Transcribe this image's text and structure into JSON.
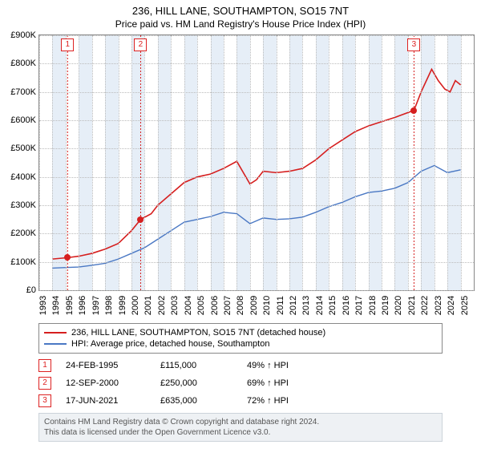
{
  "title": "236, HILL LANE, SOUTHAMPTON, SO15 7NT",
  "subtitle": "Price paid vs. HM Land Registry's House Price Index (HPI)",
  "chart": {
    "type": "line",
    "background_color": "#ffffff",
    "band_color": "#e6eef7",
    "grid_color": "#bbbbbb",
    "border_color": "#888888",
    "x": {
      "min": 1993,
      "max": 2026,
      "ticks": [
        1993,
        1994,
        1995,
        1996,
        1997,
        1998,
        1999,
        2000,
        2001,
        2002,
        2003,
        2004,
        2005,
        2006,
        2007,
        2008,
        2009,
        2010,
        2011,
        2012,
        2013,
        2014,
        2015,
        2016,
        2017,
        2018,
        2019,
        2020,
        2021,
        2022,
        2023,
        2024,
        2025
      ]
    },
    "y": {
      "min": 0,
      "max": 900000,
      "tick_step": 100000,
      "labels": [
        "£0",
        "£100K",
        "£200K",
        "£300K",
        "£400K",
        "£500K",
        "£600K",
        "£700K",
        "£800K",
        "£900K"
      ]
    },
    "series": [
      {
        "name": "236, HILL LANE, SOUTHAMPTON, SO15 7NT (detached house)",
        "color": "#d61f1f",
        "width": 1.6,
        "data": [
          [
            1994.0,
            110000
          ],
          [
            1995.15,
            115000
          ],
          [
            1996.0,
            120000
          ],
          [
            1997.0,
            130000
          ],
          [
            1998.0,
            145000
          ],
          [
            1999.0,
            165000
          ],
          [
            2000.0,
            210000
          ],
          [
            2000.7,
            250000
          ],
          [
            2001.5,
            270000
          ],
          [
            2002.0,
            300000
          ],
          [
            2003.0,
            340000
          ],
          [
            2004.0,
            380000
          ],
          [
            2005.0,
            400000
          ],
          [
            2006.0,
            410000
          ],
          [
            2007.0,
            430000
          ],
          [
            2008.0,
            455000
          ],
          [
            2009.0,
            375000
          ],
          [
            2009.5,
            390000
          ],
          [
            2010.0,
            420000
          ],
          [
            2011.0,
            415000
          ],
          [
            2012.0,
            420000
          ],
          [
            2013.0,
            430000
          ],
          [
            2014.0,
            460000
          ],
          [
            2015.0,
            500000
          ],
          [
            2016.0,
            530000
          ],
          [
            2017.0,
            560000
          ],
          [
            2018.0,
            580000
          ],
          [
            2019.0,
            595000
          ],
          [
            2020.0,
            610000
          ],
          [
            2021.46,
            635000
          ],
          [
            2022.0,
            700000
          ],
          [
            2022.8,
            780000
          ],
          [
            2023.3,
            740000
          ],
          [
            2023.8,
            710000
          ],
          [
            2024.2,
            700000
          ],
          [
            2024.6,
            740000
          ],
          [
            2025.0,
            725000
          ]
        ]
      },
      {
        "name": "HPI: Average price, detached house, Southampton",
        "color": "#4a78c4",
        "width": 1.4,
        "data": [
          [
            1994.0,
            78000
          ],
          [
            1995.0,
            80000
          ],
          [
            1996.0,
            82000
          ],
          [
            1997.0,
            88000
          ],
          [
            1998.0,
            95000
          ],
          [
            1999.0,
            110000
          ],
          [
            2000.0,
            130000
          ],
          [
            2001.0,
            150000
          ],
          [
            2002.0,
            180000
          ],
          [
            2003.0,
            210000
          ],
          [
            2004.0,
            240000
          ],
          [
            2005.0,
            250000
          ],
          [
            2006.0,
            260000
          ],
          [
            2007.0,
            275000
          ],
          [
            2008.0,
            270000
          ],
          [
            2009.0,
            235000
          ],
          [
            2010.0,
            255000
          ],
          [
            2011.0,
            250000
          ],
          [
            2012.0,
            252000
          ],
          [
            2013.0,
            258000
          ],
          [
            2014.0,
            275000
          ],
          [
            2015.0,
            295000
          ],
          [
            2016.0,
            310000
          ],
          [
            2017.0,
            330000
          ],
          [
            2018.0,
            345000
          ],
          [
            2019.0,
            350000
          ],
          [
            2020.0,
            360000
          ],
          [
            2021.0,
            380000
          ],
          [
            2022.0,
            420000
          ],
          [
            2023.0,
            440000
          ],
          [
            2024.0,
            415000
          ],
          [
            2025.0,
            425000
          ]
        ]
      }
    ],
    "markers": [
      {
        "n": "1",
        "x": 1995.15,
        "y": 115000,
        "color": "#d61f1f"
      },
      {
        "n": "2",
        "x": 2000.7,
        "y": 250000,
        "color": "#d61f1f"
      },
      {
        "n": "3",
        "x": 2021.46,
        "y": 635000,
        "color": "#d61f1f"
      }
    ]
  },
  "legend": [
    {
      "color": "#d61f1f",
      "label": "236, HILL LANE, SOUTHAMPTON, SO15 7NT (detached house)"
    },
    {
      "color": "#4a78c4",
      "label": "HPI: Average price, detached house, Southampton"
    }
  ],
  "events": [
    {
      "n": "1",
      "date": "24-FEB-1995",
      "price": "£115,000",
      "pct": "49% ↑ HPI"
    },
    {
      "n": "2",
      "date": "12-SEP-2000",
      "price": "£250,000",
      "pct": "69% ↑ HPI"
    },
    {
      "n": "3",
      "date": "17-JUN-2021",
      "price": "£635,000",
      "pct": "72% ↑ HPI"
    }
  ],
  "footer": {
    "line1": "Contains HM Land Registry data © Crown copyright and database right 2024.",
    "line2": "This data is licensed under the Open Government Licence v3.0."
  }
}
